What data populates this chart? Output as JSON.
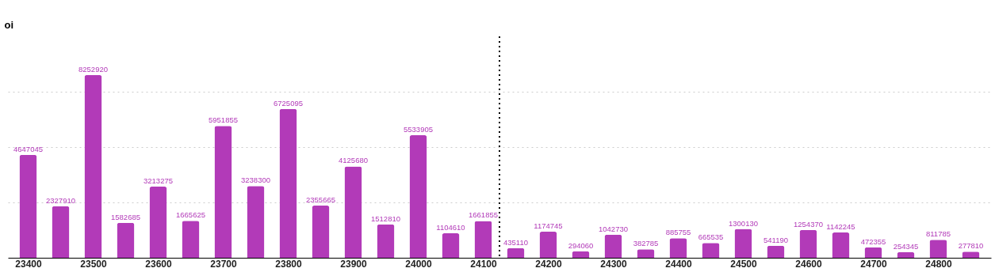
{
  "chart_data": {
    "type": "bar",
    "ylabel": "oi",
    "x": [
      23400,
      23450,
      23500,
      23550,
      23600,
      23650,
      23700,
      23750,
      23800,
      23850,
      23900,
      23950,
      24000,
      24050,
      24100,
      24150,
      24200,
      24250,
      24300,
      24350,
      24400,
      24450,
      24500,
      24550,
      24600,
      24650,
      24700,
      24750,
      24800,
      24850
    ],
    "values": [
      4647045,
      2327910,
      8252920,
      1582685,
      3213275,
      1665625,
      5951855,
      3238300,
      6725095,
      2355665,
      4125680,
      1512810,
      5533905,
      1104610,
      1661855,
      435110,
      1174745,
      294060,
      1042730,
      382785,
      885755,
      665535,
      1300130,
      541190,
      1254370,
      1142245,
      472355,
      254345,
      811785,
      277810
    ],
    "color": "#b23ab8",
    "xlim": [
      23375,
      24875
    ],
    "xticks": [
      23400,
      23500,
      23600,
      23700,
      23800,
      23900,
      24000,
      24100,
      24200,
      24300,
      24400,
      24500,
      24600,
      24700,
      24800
    ],
    "ylim": [
      0,
      10000000
    ],
    "yticks": [
      {
        "value": 2500000,
        "label": null
      },
      {
        "value": 5000000,
        "label": null
      },
      {
        "value": 7500000,
        "label": null
      }
    ],
    "ref_lines": [
      {
        "axis": "x",
        "value": 24125,
        "color": "#000000",
        "line_style": "dotted"
      }
    ],
    "grid": "y",
    "tick_labels": "x",
    "data_labels": true
  }
}
